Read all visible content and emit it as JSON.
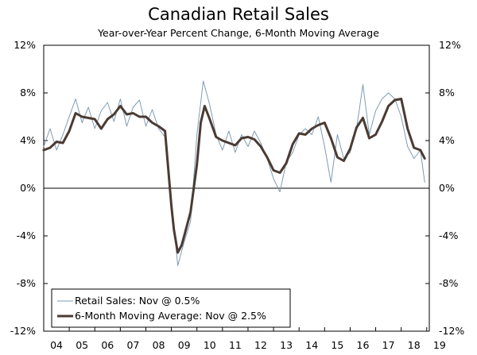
{
  "chart_data": {
    "type": "line",
    "title": "Canadian Retail Sales",
    "subtitle": "Year-over-Year Percent Change, 6-Month Moving Average",
    "xlabel": "",
    "ylabel": "",
    "xlim": [
      2004.0,
      2019.1
    ],
    "ylim": [
      -12,
      12
    ],
    "y_ticks": [
      12,
      8,
      4,
      0,
      -4,
      -8,
      -12
    ],
    "y_tick_labels": [
      "12%",
      "8%",
      "4%",
      "0%",
      "-4%",
      "-8%",
      "-12%"
    ],
    "x_ticks": [
      2004,
      2005,
      2006,
      2007,
      2008,
      2009,
      2010,
      2011,
      2012,
      2013,
      2014,
      2015,
      2016,
      2017,
      2018,
      2019
    ],
    "x_tick_labels": [
      "04",
      "05",
      "06",
      "07",
      "08",
      "09",
      "10",
      "11",
      "12",
      "13",
      "14",
      "15",
      "16",
      "17",
      "18",
      "19"
    ],
    "zero_line": 0,
    "legend_position": "bottom-left",
    "series": [
      {
        "name": "Retail Sales: Nov @ 0.5%",
        "style": "thin",
        "color": "#7f9cb3",
        "x": [
          2004.0,
          2004.25,
          2004.5,
          2004.75,
          2005.0,
          2005.25,
          2005.5,
          2005.75,
          2006.0,
          2006.25,
          2006.5,
          2006.75,
          2007.0,
          2007.25,
          2007.5,
          2007.75,
          2008.0,
          2008.25,
          2008.5,
          2008.75,
          2009.0,
          2009.25,
          2009.5,
          2009.75,
          2010.0,
          2010.25,
          2010.5,
          2010.75,
          2011.0,
          2011.25,
          2011.5,
          2011.75,
          2012.0,
          2012.25,
          2012.5,
          2012.75,
          2013.0,
          2013.25,
          2013.5,
          2013.75,
          2014.0,
          2014.25,
          2014.5,
          2014.75,
          2015.0,
          2015.25,
          2015.5,
          2015.75,
          2016.0,
          2016.25,
          2016.5,
          2016.75,
          2017.0,
          2017.25,
          2017.5,
          2017.75,
          2018.0,
          2018.25,
          2018.5,
          2018.75,
          2018.92
        ],
        "y": [
          3.5,
          5.0,
          3.2,
          4.5,
          6.0,
          7.5,
          5.5,
          6.8,
          5.0,
          6.5,
          7.2,
          5.6,
          7.5,
          5.2,
          6.8,
          7.4,
          5.2,
          6.6,
          5.0,
          4.3,
          -1.0,
          -6.5,
          -4.5,
          -2.8,
          4.5,
          9.0,
          7.0,
          4.5,
          3.2,
          4.8,
          3.0,
          4.5,
          3.5,
          4.8,
          3.8,
          2.5,
          0.8,
          -0.3,
          2.2,
          3.0,
          4.5,
          5.0,
          4.5,
          6.0,
          3.5,
          0.5,
          4.5,
          2.5,
          3.0,
          5.0,
          8.7,
          4.5,
          6.5,
          7.5,
          8.0,
          7.5,
          6.0,
          3.5,
          2.5,
          3.2,
          0.5
        ]
      },
      {
        "name": "6-Month Moving Average: Nov @ 2.5%",
        "style": "thick",
        "color": "#4a3b33",
        "x": [
          2004.0,
          2004.25,
          2004.5,
          2004.75,
          2005.0,
          2005.25,
          2005.5,
          2005.75,
          2006.0,
          2006.25,
          2006.5,
          2006.75,
          2007.0,
          2007.25,
          2007.5,
          2007.75,
          2008.0,
          2008.25,
          2008.5,
          2008.75,
          2009.0,
          2009.1,
          2009.25,
          2009.4,
          2009.5,
          2009.75,
          2010.0,
          2010.15,
          2010.3,
          2010.5,
          2010.75,
          2011.0,
          2011.25,
          2011.5,
          2011.75,
          2012.0,
          2012.25,
          2012.5,
          2012.75,
          2013.0,
          2013.25,
          2013.5,
          2013.75,
          2014.0,
          2014.25,
          2014.5,
          2014.75,
          2015.0,
          2015.25,
          2015.5,
          2015.75,
          2016.0,
          2016.25,
          2016.5,
          2016.75,
          2017.0,
          2017.25,
          2017.5,
          2017.75,
          2018.0,
          2018.25,
          2018.5,
          2018.75,
          2018.92
        ],
        "y": [
          3.2,
          3.4,
          3.9,
          3.8,
          4.8,
          6.3,
          6.0,
          5.9,
          5.8,
          5.0,
          5.8,
          6.2,
          6.9,
          6.2,
          6.3,
          6.0,
          6.0,
          5.5,
          5.2,
          4.8,
          -1.5,
          -3.5,
          -5.4,
          -4.8,
          -4.0,
          -2.0,
          2.0,
          5.5,
          6.9,
          5.8,
          4.3,
          4.0,
          3.8,
          3.6,
          4.2,
          4.3,
          4.1,
          3.5,
          2.6,
          1.5,
          1.3,
          2.1,
          3.7,
          4.6,
          4.5,
          5.0,
          5.3,
          5.5,
          4.2,
          2.6,
          2.3,
          3.3,
          5.1,
          5.9,
          4.2,
          4.5,
          5.6,
          6.9,
          7.4,
          7.5,
          5.0,
          3.4,
          3.2,
          2.5
        ]
      }
    ]
  }
}
